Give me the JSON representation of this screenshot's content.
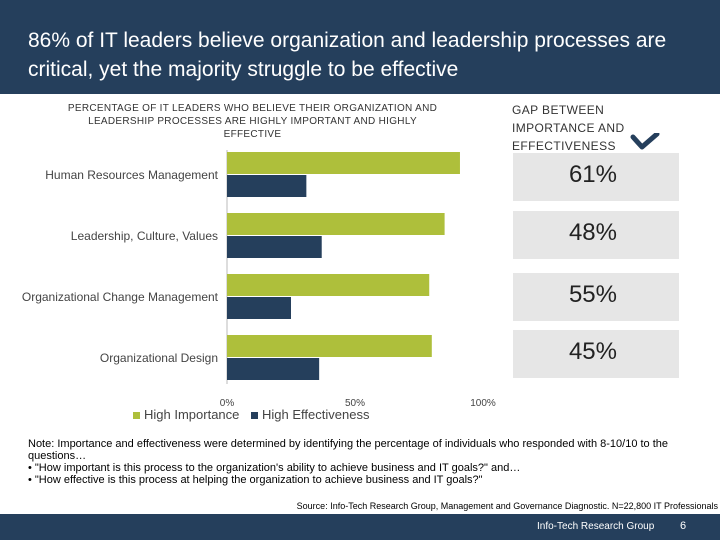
{
  "slide": {
    "title": "86% of IT leaders believe organization and leadership processes are critical, yet the majority struggle to be effective"
  },
  "colors": {
    "header_bg": "#253f5c",
    "importance": "#aebf3b",
    "effectiveness": "#253f5c",
    "gap_box": "#e6e6e6"
  },
  "chart_data": {
    "type": "bar",
    "orientation": "horizontal",
    "title": "PERCENTAGE OF IT LEADERS WHO BELIEVE THEIR ORGANIZATION AND LEADERSHIP PROCESSES ARE HIGHLY IMPORTANT AND HIGHLY EFFECTIVE",
    "categories": [
      "Human Resources Management",
      "Leadership, Culture, Values",
      "Organizational Change Management",
      "Organizational Design"
    ],
    "series": [
      {
        "name": "High Importance",
        "color": "#aebf3b",
        "values": [
          91,
          85,
          79,
          80
        ]
      },
      {
        "name": "High Effectiveness",
        "color": "#253f5c",
        "values": [
          31,
          37,
          25,
          36
        ]
      }
    ],
    "xlim": [
      0,
      100
    ],
    "tick_labels": [
      "0%",
      "50%",
      "100%"
    ],
    "legend_position": "bottom"
  },
  "gap": {
    "title": "GAP BETWEEN IMPORTANCE AND EFFECTIVENESS",
    "icon": "chevron-down-icon",
    "values": [
      "61%",
      "48%",
      "55%",
      "45%"
    ]
  },
  "note": {
    "line1": "Note: Importance and effectiveness were determined by identifying the percentage of individuals who responded with 8-10/10 to the questions…",
    "bullet1": "•  \"How important is this process to the organization's ability to achieve business and IT goals?\" and…",
    "bullet2": "•  \"How effective is this process at helping the organization to achieve business and IT goals?\""
  },
  "source": "Source: Info-Tech Research Group, Management and Governance Diagnostic. N=22,800 IT Professionals",
  "footer": {
    "brand": "Info-Tech Research Group",
    "page": "6"
  }
}
